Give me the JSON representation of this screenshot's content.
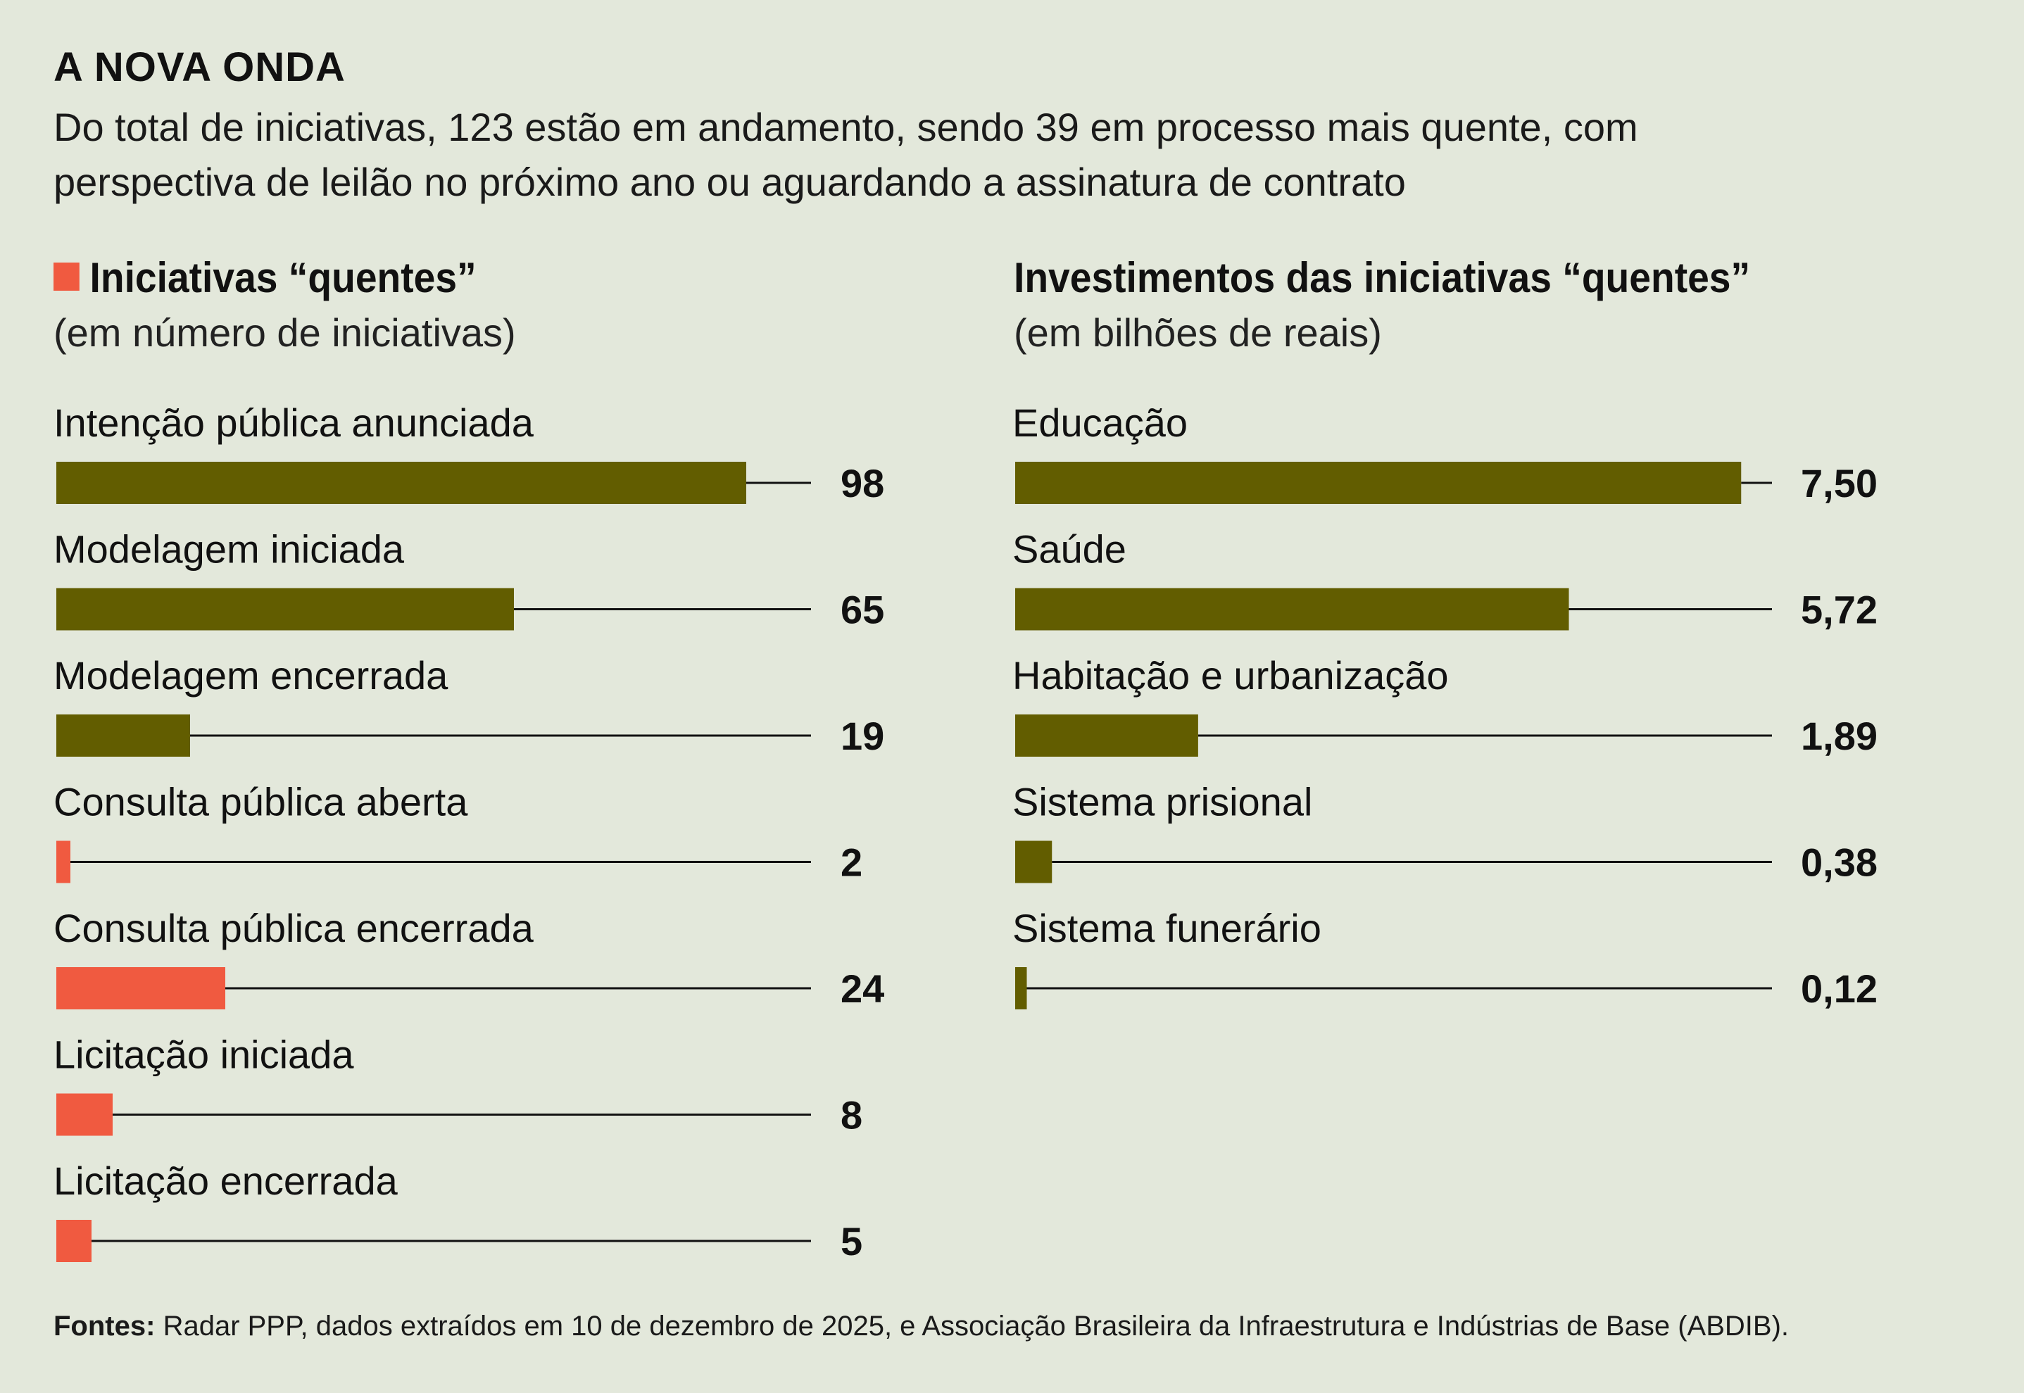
{
  "title": "A NOVA ONDA",
  "subtitle": "Do total de iniciativas, 123 estão em andamento, sendo 39 em processo mais quente, com perspectiva de leilão no próximo ano ou aguardando a assinatura de contrato",
  "colors": {
    "background": "#e3e8db",
    "olive": "#625d00",
    "coral": "#f05a40",
    "text": "#111111"
  },
  "footer": {
    "label": "Fontes:",
    "text": "Radar PPP, dados extraídos em 10 de dezembro de 2025, e Associação Brasileira da Infraestrutura e Indústrias de Base (ABDIB)."
  },
  "chart_data": [
    {
      "type": "bar",
      "orientation": "horizontal",
      "title": "Iniciativas “quentes”",
      "subtitle": "(em número de iniciativas)",
      "legend": {
        "label": "Iniciativas “quentes”",
        "color": "#f05a40",
        "marker": "square"
      },
      "xlim": [
        0,
        110
      ],
      "categories": [
        "Intenção pública anunciada",
        "Modelagem iniciada",
        "Modelagem encerrada",
        "Consulta pública aberta",
        "Consulta pública encerrada",
        "Licitação iniciada",
        "Licitação encerrada"
      ],
      "values": [
        98,
        65,
        19,
        2,
        24,
        8,
        5
      ],
      "value_labels": [
        "98",
        "65",
        "19",
        "2",
        "24",
        "8",
        "5"
      ],
      "hot": [
        false,
        false,
        false,
        true,
        true,
        true,
        true
      ]
    },
    {
      "type": "bar",
      "orientation": "horizontal",
      "title": "Investimentos das iniciativas “quentes”",
      "subtitle": "(em bilhões de reais)",
      "xlim": [
        0,
        8.0
      ],
      "categories": [
        "Educação",
        "Saúde",
        "Habitação e urbanização",
        "Sistema prisional",
        "Sistema funerário"
      ],
      "values": [
        7.5,
        5.72,
        1.89,
        0.38,
        0.12
      ],
      "value_labels": [
        "7,50",
        "5,72",
        "1,89",
        "0,38",
        "0,12"
      ]
    }
  ]
}
